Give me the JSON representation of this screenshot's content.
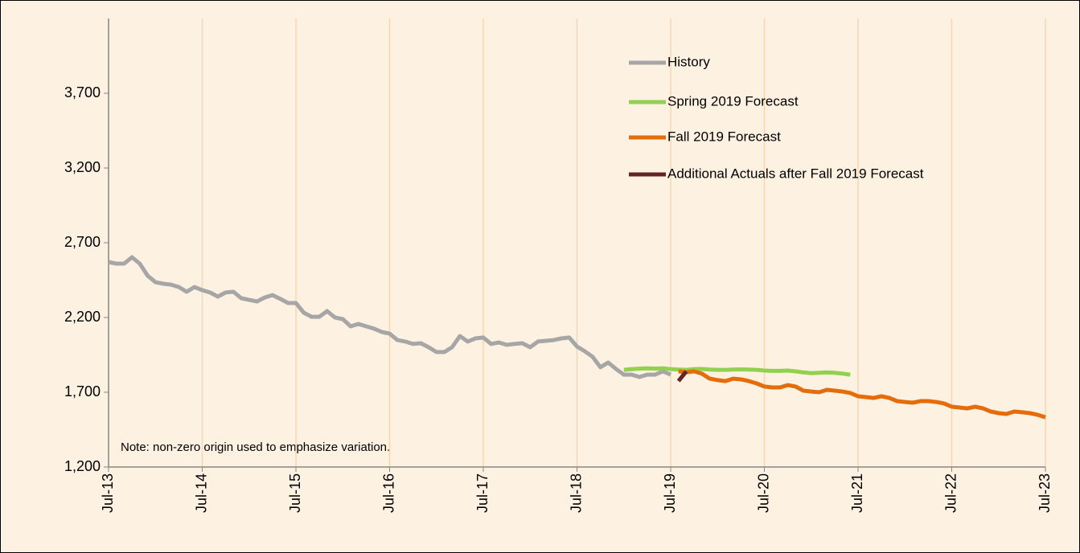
{
  "chart_data": {
    "type": "line",
    "annotations": [
      "Note: non-zero origin used to emphasize variation."
    ],
    "x": [
      "2013-07",
      "2013-08",
      "2013-09",
      "2013-10",
      "2013-11",
      "2013-12",
      "2014-01",
      "2014-02",
      "2014-03",
      "2014-04",
      "2014-05",
      "2014-06",
      "2014-07",
      "2014-08",
      "2014-09",
      "2014-10",
      "2014-11",
      "2014-12",
      "2015-01",
      "2015-02",
      "2015-03",
      "2015-04",
      "2015-05",
      "2015-06",
      "2015-07",
      "2015-08",
      "2015-09",
      "2015-10",
      "2015-11",
      "2015-12",
      "2016-01",
      "2016-02",
      "2016-03",
      "2016-04",
      "2016-05",
      "2016-06",
      "2016-07",
      "2016-08",
      "2016-09",
      "2016-10",
      "2016-11",
      "2016-12",
      "2017-01",
      "2017-02",
      "2017-03",
      "2017-04",
      "2017-05",
      "2017-06",
      "2017-07",
      "2017-08",
      "2017-09",
      "2017-10",
      "2017-11",
      "2017-12",
      "2018-01",
      "2018-02",
      "2018-03",
      "2018-04",
      "2018-05",
      "2018-06",
      "2018-07",
      "2018-08",
      "2018-09",
      "2018-10",
      "2018-11",
      "2018-12",
      "2019-01",
      "2019-02",
      "2019-03",
      "2019-04",
      "2019-05",
      "2019-06",
      "2019-07",
      "2019-08",
      "2019-09",
      "2019-10",
      "2019-11",
      "2019-12",
      "2020-01",
      "2020-02",
      "2020-03",
      "2020-04",
      "2020-05",
      "2020-06",
      "2020-07",
      "2020-08",
      "2020-09",
      "2020-10",
      "2020-11",
      "2020-12",
      "2021-01",
      "2021-02",
      "2021-03",
      "2021-04",
      "2021-05",
      "2021-06",
      "2021-07",
      "2021-08",
      "2021-09",
      "2021-10",
      "2021-11",
      "2021-12",
      "2022-01",
      "2022-02",
      "2022-03",
      "2022-04",
      "2022-05",
      "2022-06",
      "2022-07",
      "2022-08",
      "2022-09",
      "2022-10",
      "2022-11",
      "2022-12",
      "2023-01",
      "2023-02",
      "2023-03",
      "2023-04",
      "2023-05",
      "2023-06",
      "2023-07"
    ],
    "series": [
      {
        "name": "History",
        "color": "#a6a6a6",
        "values": [
          2571,
          2560,
          2560,
          2603,
          2560,
          2480,
          2436,
          2426,
          2420,
          2404,
          2372,
          2404,
          2383,
          2367,
          2340,
          2367,
          2372,
          2329,
          2318,
          2307,
          2334,
          2350,
          2324,
          2297,
          2297,
          2232,
          2205,
          2205,
          2243,
          2200,
          2189,
          2141,
          2157,
          2141,
          2125,
          2103,
          2092,
          2049,
          2039,
          2023,
          2028,
          2001,
          1969,
          1969,
          2001,
          2076,
          2039,
          2060,
          2066,
          2023,
          2033,
          2017,
          2023,
          2028,
          2001,
          2039,
          2044,
          2049,
          2060,
          2066,
          2006,
          1974,
          1937,
          1867,
          1899,
          1856,
          1818,
          1818,
          1802,
          1818,
          1818,
          1840,
          1818,
          null,
          null,
          null,
          null,
          null,
          null,
          null,
          null,
          null,
          null,
          null,
          null,
          null,
          null,
          null,
          null,
          null,
          null,
          null,
          null,
          null,
          null,
          null,
          null,
          null,
          null,
          null,
          null,
          null,
          null,
          null,
          null,
          null,
          null,
          null,
          null,
          null,
          null,
          null,
          null,
          null,
          null,
          null,
          null,
          null,
          null,
          null,
          null
        ]
      },
      {
        "name": "Spring 2019 Forecast",
        "color": "#92d050",
        "values": [
          null,
          null,
          null,
          null,
          null,
          null,
          null,
          null,
          null,
          null,
          null,
          null,
          null,
          null,
          null,
          null,
          null,
          null,
          null,
          null,
          null,
          null,
          null,
          null,
          null,
          null,
          null,
          null,
          null,
          null,
          null,
          null,
          null,
          null,
          null,
          null,
          null,
          null,
          null,
          null,
          null,
          null,
          null,
          null,
          null,
          null,
          null,
          null,
          null,
          null,
          null,
          null,
          null,
          null,
          null,
          null,
          null,
          null,
          null,
          null,
          null,
          null,
          null,
          null,
          null,
          null,
          1850,
          1855,
          1858,
          1860,
          1858,
          1860,
          1855,
          1852,
          1850,
          1855,
          1856,
          1852,
          1850,
          1850,
          1852,
          1853,
          1852,
          1850,
          1845,
          1843,
          1843,
          1845,
          1840,
          1833,
          1828,
          1830,
          1832,
          1830,
          1825,
          1818,
          null,
          null,
          null,
          null,
          null,
          null,
          null,
          null,
          null,
          null,
          null,
          null,
          null,
          null,
          null,
          null,
          null,
          null,
          null,
          null,
          null,
          null,
          null,
          null,
          null
        ]
      },
      {
        "name": "Fall 2019 Forecast",
        "color": "#e46c0a",
        "values": [
          null,
          null,
          null,
          null,
          null,
          null,
          null,
          null,
          null,
          null,
          null,
          null,
          null,
          null,
          null,
          null,
          null,
          null,
          null,
          null,
          null,
          null,
          null,
          null,
          null,
          null,
          null,
          null,
          null,
          null,
          null,
          null,
          null,
          null,
          null,
          null,
          null,
          null,
          null,
          null,
          null,
          null,
          null,
          null,
          null,
          null,
          null,
          null,
          null,
          null,
          null,
          null,
          null,
          null,
          null,
          null,
          null,
          null,
          null,
          null,
          null,
          null,
          null,
          null,
          null,
          null,
          null,
          null,
          null,
          null,
          null,
          null,
          null,
          1840,
          1834,
          1840,
          1824,
          1791,
          1781,
          1775,
          1791,
          1786,
          1775,
          1759,
          1738,
          1732,
          1732,
          1748,
          1738,
          1711,
          1705,
          1700,
          1716,
          1711,
          1705,
          1695,
          1673,
          1668,
          1662,
          1673,
          1662,
          1641,
          1635,
          1630,
          1641,
          1641,
          1635,
          1625,
          1603,
          1598,
          1592,
          1603,
          1592,
          1571,
          1560,
          1555,
          1571,
          1566,
          1560,
          1549,
          1533
        ]
      },
      {
        "name": "Additional Actuals after Fall 2019 Forecast",
        "color": "#632523",
        "values": [
          null,
          null,
          null,
          null,
          null,
          null,
          null,
          null,
          null,
          null,
          null,
          null,
          null,
          null,
          null,
          null,
          null,
          null,
          null,
          null,
          null,
          null,
          null,
          null,
          null,
          null,
          null,
          null,
          null,
          null,
          null,
          null,
          null,
          null,
          null,
          null,
          null,
          null,
          null,
          null,
          null,
          null,
          null,
          null,
          null,
          null,
          null,
          null,
          null,
          null,
          null,
          null,
          null,
          null,
          null,
          null,
          null,
          null,
          null,
          null,
          null,
          null,
          null,
          null,
          null,
          null,
          null,
          null,
          null,
          null,
          null,
          null,
          null,
          1775,
          1840,
          null,
          null,
          null,
          null,
          null,
          null,
          null,
          null,
          null,
          null,
          null,
          null,
          null,
          null,
          null,
          null,
          null,
          null,
          null,
          null,
          null,
          null,
          null,
          null,
          null,
          null,
          null,
          null,
          null,
          null,
          null,
          null,
          null,
          null,
          null,
          null,
          null,
          null,
          null,
          null,
          null,
          null,
          null,
          null,
          null,
          null
        ]
      }
    ],
    "ylim": [
      1200,
      4200
    ],
    "yticks": [
      {
        "value": 1200,
        "label": "1,200"
      },
      {
        "value": 1700,
        "label": "1,700"
      },
      {
        "value": 2200,
        "label": "2,200"
      },
      {
        "value": 2700,
        "label": "2,700"
      },
      {
        "value": 3200,
        "label": "3,200"
      },
      {
        "value": 3700,
        "label": "3,700"
      }
    ],
    "xticks": [
      {
        "value": "2013-07",
        "label": "Jul-13"
      },
      {
        "value": "2014-07",
        "label": "Jul-14"
      },
      {
        "value": "2015-07",
        "label": "Jul-15"
      },
      {
        "value": "2016-07",
        "label": "Jul-16"
      },
      {
        "value": "2017-07",
        "label": "Jul-17"
      },
      {
        "value": "2018-07",
        "label": "Jul-18"
      },
      {
        "value": "2019-07",
        "label": "Jul-19"
      },
      {
        "value": "2020-07",
        "label": "Jul-20"
      },
      {
        "value": "2021-07",
        "label": "Jul-21"
      },
      {
        "value": "2022-07",
        "label": "Jul-22"
      },
      {
        "value": "2023-07",
        "label": "Jul-23"
      }
    ],
    "grid": "x",
    "grid_color": "#f6d7b0",
    "background": "#fdf1e2",
    "legend": "top-right"
  }
}
